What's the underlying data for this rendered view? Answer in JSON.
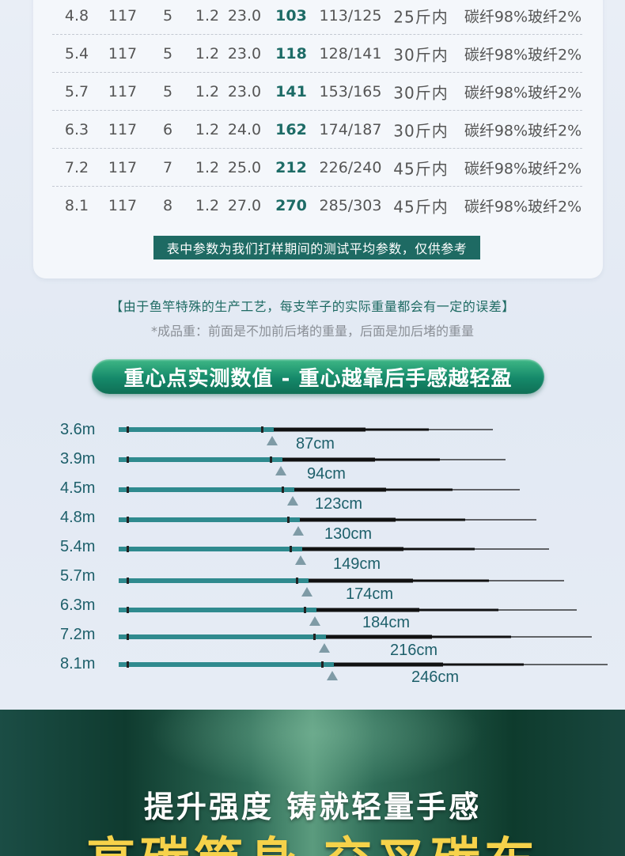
{
  "spec_table": {
    "rows": [
      {
        "length": "4.8",
        "c2": "117",
        "c3": "5",
        "c4": "1.2",
        "c5": "23.0",
        "weight": "103",
        "finished_weight": "113/125",
        "capacity": "25斤内",
        "material": "碳纤98%玻纤2%"
      },
      {
        "length": "5.4",
        "c2": "117",
        "c3": "5",
        "c4": "1.2",
        "c5": "23.0",
        "weight": "118",
        "finished_weight": "128/141",
        "capacity": "30斤内",
        "material": "碳纤98%玻纤2%"
      },
      {
        "length": "5.7",
        "c2": "117",
        "c3": "5",
        "c4": "1.2",
        "c5": "23.0",
        "weight": "141",
        "finished_weight": "153/165",
        "capacity": "30斤内",
        "material": "碳纤98%玻纤2%"
      },
      {
        "length": "6.3",
        "c2": "117",
        "c3": "6",
        "c4": "1.2",
        "c5": "24.0",
        "weight": "162",
        "finished_weight": "174/187",
        "capacity": "30斤内",
        "material": "碳纤98%玻纤2%"
      },
      {
        "length": "7.2",
        "c2": "117",
        "c3": "7",
        "c4": "1.2",
        "c5": "25.0",
        "weight": "212",
        "finished_weight": "226/240",
        "capacity": "45斤内",
        "material": "碳纤98%玻纤2%"
      },
      {
        "length": "8.1",
        "c2": "117",
        "c3": "8",
        "c4": "1.2",
        "c5": "27.0",
        "weight": "270",
        "finished_weight": "285/303",
        "capacity": "45斤内",
        "material": "碳纤98%玻纤2%"
      }
    ],
    "note": "表中参数为我们打样期间的测试平均参数，仅供参考"
  },
  "disclaimer": {
    "line1": "【由于鱼竿特殊的生产工艺，每支竿子的实际重量都会有一定的误差】",
    "line2": "*成品重：前面是不加前后堵的重量，后面是加后堵的重量"
  },
  "cg_section": {
    "banner": "重心点实测数值 - 重心越靠后手感越轻盈",
    "rods": [
      {
        "length": "3.6m",
        "cg": "87cm"
      },
      {
        "length": "3.9m",
        "cg": "94cm"
      },
      {
        "length": "4.5m",
        "cg": "123cm"
      },
      {
        "length": "4.8m",
        "cg": "130cm"
      },
      {
        "length": "5.4m",
        "cg": "149cm"
      },
      {
        "length": "5.7m",
        "cg": "174cm"
      },
      {
        "length": "6.3m",
        "cg": "184cm"
      },
      {
        "length": "7.2m",
        "cg": "216cm"
      },
      {
        "length": "8.1m",
        "cg": "246cm"
      }
    ]
  },
  "promo": {
    "subtitle": "提升强度 铸就轻量手感",
    "headline": "高碳竿身 交叉碳布"
  },
  "colors": {
    "accent": "#1e6a63",
    "rod_handle": "#2f8a8e",
    "headline": "#f6d24a"
  }
}
